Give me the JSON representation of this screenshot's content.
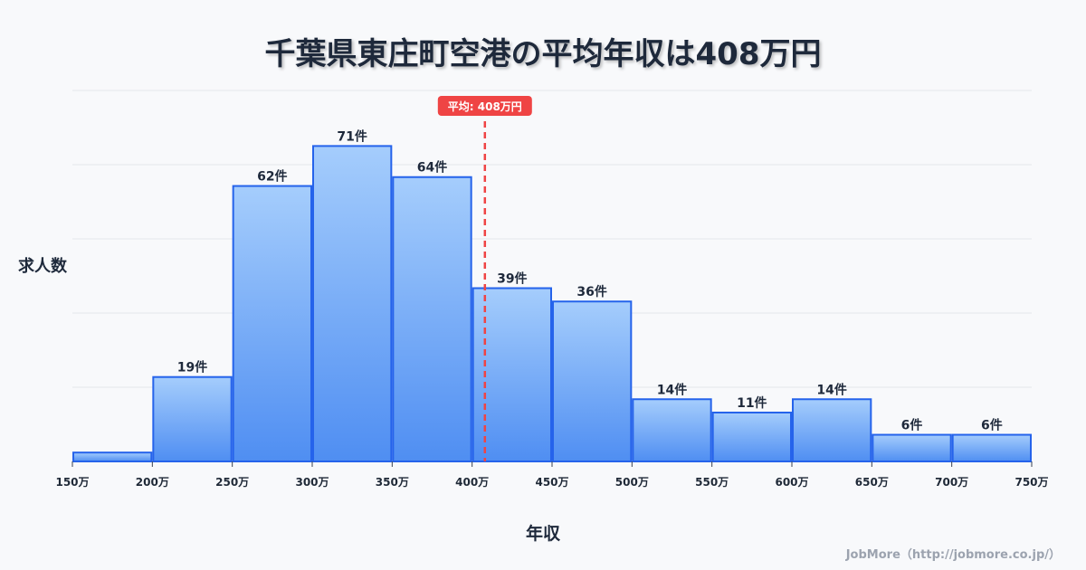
{
  "title": "千葉県東庄町空港の平均年収は408万円",
  "footer": "JobMore（http://jobmore.co.jp/）",
  "chart_data": {
    "type": "bar",
    "title": "千葉県東庄町空港の平均年収は408万円",
    "xlabel": "年収",
    "ylabel": "求人数",
    "bin_edges": [
      150,
      200,
      250,
      300,
      350,
      400,
      450,
      500,
      550,
      600,
      650,
      700,
      750
    ],
    "tick_labels": [
      "150万",
      "200万",
      "250万",
      "300万",
      "350万",
      "400万",
      "450万",
      "500万",
      "550万",
      "600万",
      "650万",
      "700万",
      "750万"
    ],
    "values": [
      2,
      19,
      62,
      71,
      64,
      39,
      36,
      14,
      11,
      14,
      6,
      6
    ],
    "data_labels": [
      "",
      "19件",
      "62件",
      "71件",
      "64件",
      "39件",
      "36件",
      "14件",
      "11件",
      "14件",
      "6件",
      "6件"
    ],
    "ylim": [
      0,
      83.5
    ],
    "grid": true,
    "mean": {
      "value": 408,
      "label": "平均: 408万円"
    },
    "colors": {
      "bar_top": "#a5cdfc",
      "bar_bottom": "#4f8ef2",
      "bar_stroke": "#2563eb",
      "mean_line": "#ef4444",
      "grid": "#e5e7eb"
    }
  }
}
